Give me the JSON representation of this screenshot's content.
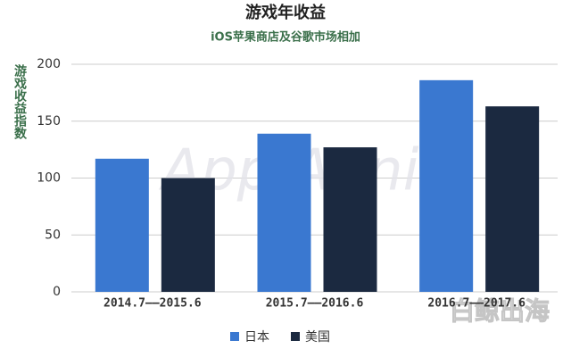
{
  "chart_data": {
    "type": "bar",
    "title": "游戏年收益",
    "subtitle": "iOS苹果商店及谷歌市场相加",
    "y_label": "游戏收益指数",
    "categories": [
      "2014.7——2015.6",
      "2015.7——2016.6",
      "2016.7——2017.6"
    ],
    "series": [
      {
        "name": "日本",
        "color": "#3a78d0",
        "values": [
          117,
          139,
          186
        ]
      },
      {
        "name": "美国",
        "color": "#1b2940",
        "values": [
          100,
          127,
          163
        ]
      }
    ],
    "ylim": [
      0,
      200
    ],
    "yticks": [
      0,
      50,
      100,
      150,
      200
    ],
    "grid": true,
    "watermarks": [
      "App Annie",
      "白鲸出海"
    ]
  }
}
